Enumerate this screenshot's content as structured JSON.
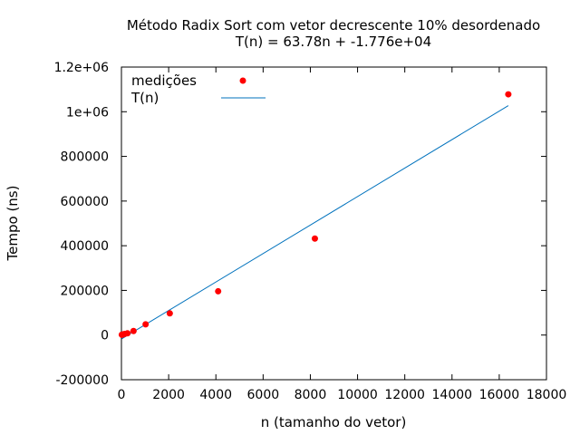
{
  "chart_data": {
    "type": "scatter",
    "title": "Método Radix Sort com vetor decrescente 10% desordenado",
    "subtitle": "T(n) = 63.78n + -1.776e+04",
    "xlabel": "n (tamanho do vetor)",
    "ylabel": "Tempo (ns)",
    "xlim": [
      0,
      18000
    ],
    "ylim": [
      -200000,
      1200000
    ],
    "xticks": [
      "0",
      "2000",
      "4000",
      "6000",
      "8000",
      "10000",
      "12000",
      "14000",
      "16000",
      "18000"
    ],
    "yticks": [
      "-200000",
      "0",
      "200000",
      "400000",
      "600000",
      "800000",
      "1e+06",
      "1.2e+06"
    ],
    "grid": false,
    "legend_position": "top-left",
    "series": [
      {
        "name": "medições",
        "kind": "points",
        "color": "#ff0000",
        "x": [
          16,
          32,
          64,
          128,
          256,
          512,
          1024,
          2048,
          4096,
          8192,
          16384
        ],
        "y": [
          1500,
          2000,
          3000,
          5000,
          8000,
          18000,
          48000,
          97000,
          196000,
          432000,
          1078000
        ]
      },
      {
        "name": "T(n)",
        "kind": "line",
        "color": "#0072bd",
        "x": [
          16,
          16384
        ],
        "y": [
          -16739,
          1027251
        ]
      }
    ]
  }
}
